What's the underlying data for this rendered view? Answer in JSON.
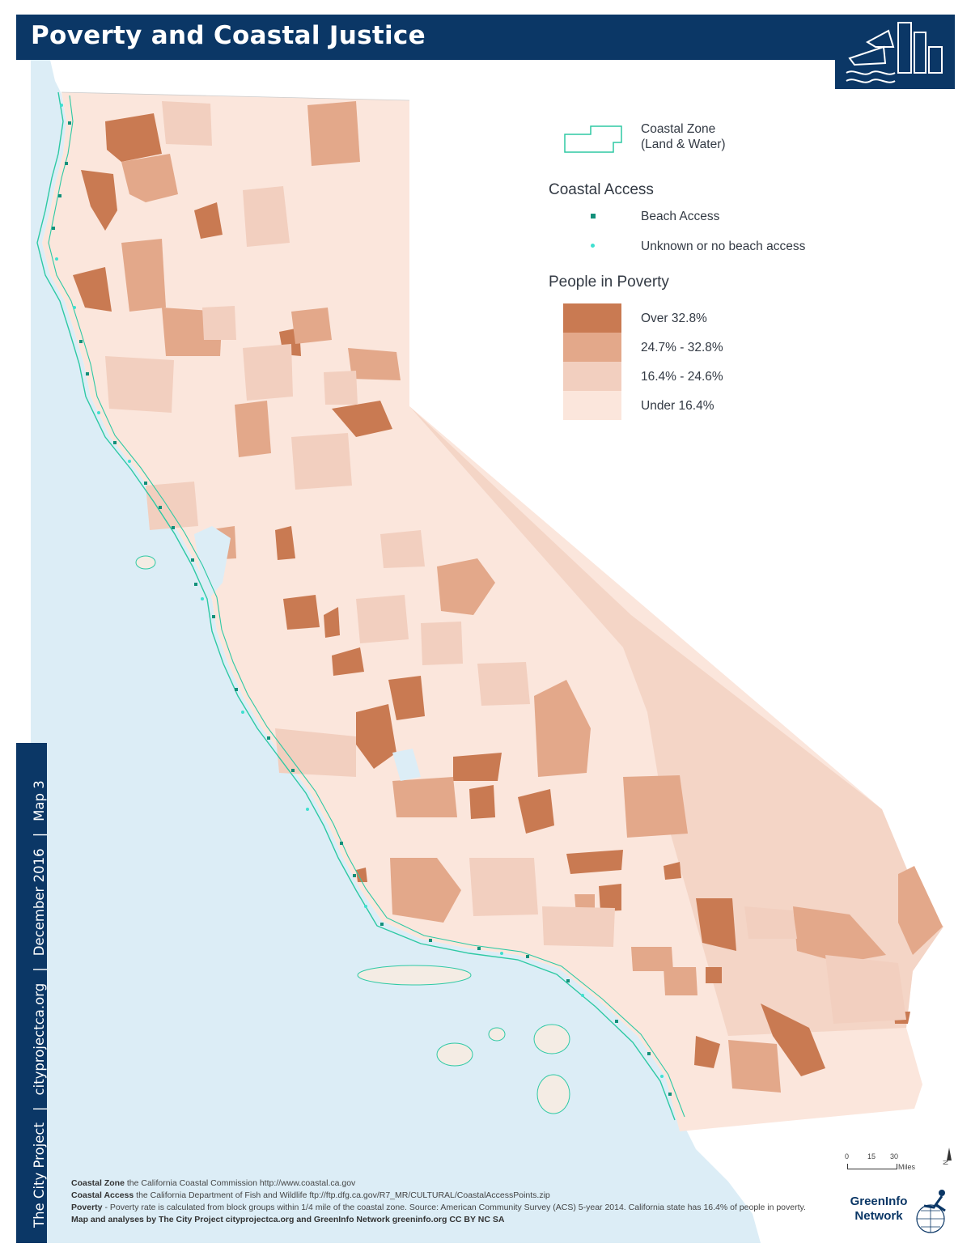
{
  "header": {
    "title": "Poverty and Coastal Justice"
  },
  "sidebar": {
    "org": "The City Project",
    "site": "cityprojectca.org",
    "date": "December 2016",
    "map_number": "Map 3",
    "separator": "|"
  },
  "legend": {
    "coastal_zone_label_1": "Coastal Zone",
    "coastal_zone_label_2": "(Land & Water)",
    "coastal_access_heading": "Coastal Access",
    "beach_access_label": "Beach Access",
    "no_access_label": "Unknown or no beach access",
    "poverty_heading": "People in Poverty",
    "classes": [
      {
        "label": "Over 32.8%",
        "color": "#c97a52"
      },
      {
        "label": "24.7% - 32.8%",
        "color": "#e3a88a"
      },
      {
        "label": "16.4% - 24.6%",
        "color": "#f2cfbf"
      },
      {
        "label": "Under 16.4%",
        "color": "#fbe6dc"
      }
    ]
  },
  "colors": {
    "header": "#0b3766",
    "ocean": "#dcedf6",
    "coastal_zone": "#2ec9a4",
    "beach_access": "#12907a",
    "no_access": "#3fe0d0"
  },
  "scale": {
    "ticks": [
      "0",
      "15",
      "30"
    ],
    "unit": "Miles",
    "north": "N"
  },
  "sources": {
    "zone_bold": "Coastal Zone",
    "zone_text": " the California Coastal Commission http://www.coastal.ca.gov",
    "access_bold": "Coastal Access",
    "access_text": "  the California Department of Fish and Wildlife ftp://ftp.dfg.ca.gov/R7_MR/CULTURAL/CoastalAccessPoints.zip",
    "poverty_bold": "Poverty",
    "poverty_text": " - Poverty rate is calculated from block groups within 1/4 mile of the coastal zone. Source: American Community Survey (ACS) 5-year 2014.  California state has 16.4% of people in poverty.",
    "credit": "Map and analyses by The City Project cityprojectca.org and GreenInfo Network greeninfo.org CC BY NC SA"
  },
  "greeninfo": {
    "line1": "GreenInfo",
    "line2": "Network"
  }
}
